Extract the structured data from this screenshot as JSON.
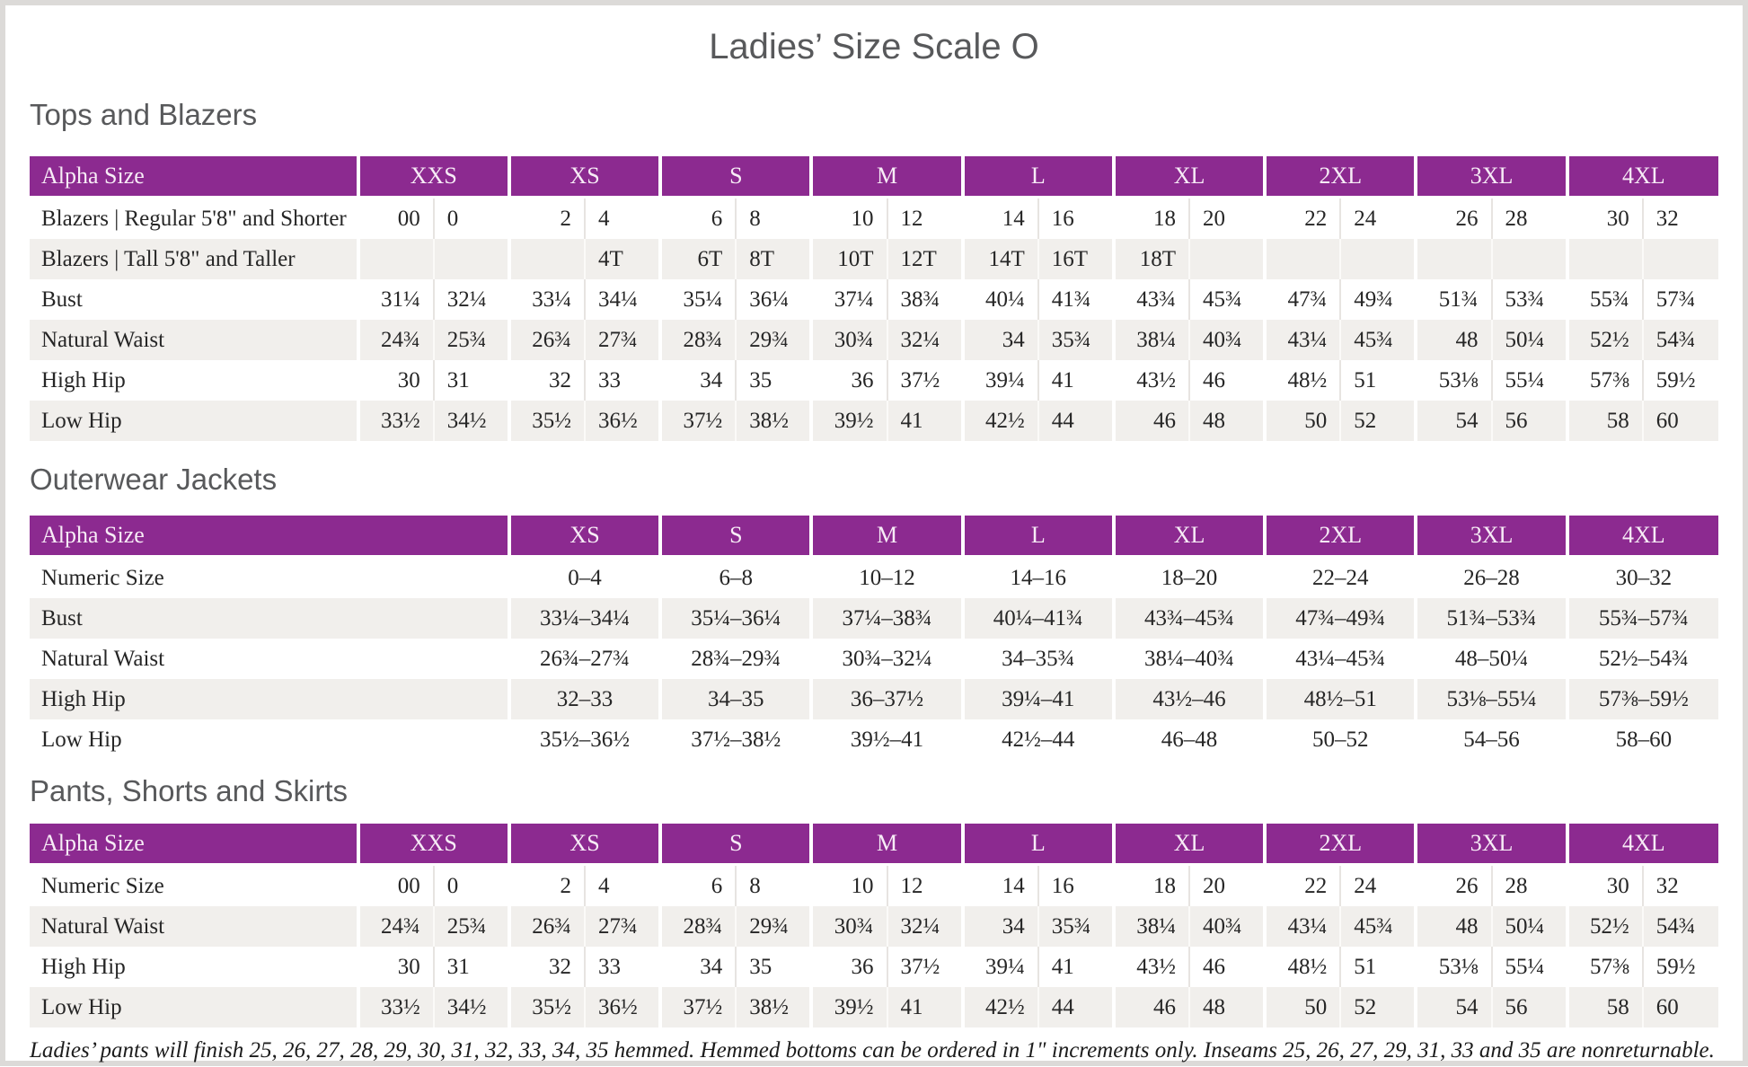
{
  "page_title": "Ladies’ Size Scale O",
  "footnote": "Ladies’ pants will finish 25, 26, 27, 28, 29, 30, 31, 32, 33, 34, 35 hemmed. Hemmed bottoms can be ordered in 1\" increments only. Inseams 25, 26, 27, 29, 31, 33 and 35 are nonreturnable.",
  "colors": {
    "header_bg": "#8c2a90",
    "header_text": "#f7ecf6",
    "row_stripe": "#f1efec",
    "heading_text": "#58595b",
    "body_text": "#262626",
    "frame_border": "#dcdad8"
  },
  "tables": [
    {
      "section_title": "Tops and Blazers",
      "header_label": "Alpha Size",
      "sub_columns": 2,
      "columns": [
        "XXS",
        "XS",
        "S",
        "M",
        "L",
        "XL",
        "2XL",
        "3XL",
        "4XL"
      ],
      "rows": [
        {
          "label": "Blazers | Regular 5'8\" and Shorter",
          "values": [
            [
              "00",
              "0"
            ],
            [
              "2",
              "4"
            ],
            [
              "6",
              "8"
            ],
            [
              "10",
              "12"
            ],
            [
              "14",
              "16"
            ],
            [
              "18",
              "20"
            ],
            [
              "22",
              "24"
            ],
            [
              "26",
              "28"
            ],
            [
              "30",
              "32"
            ]
          ]
        },
        {
          "label": "Blazers | Tall 5'8\" and Taller",
          "values": [
            [
              "",
              ""
            ],
            [
              "",
              "4T"
            ],
            [
              "6T",
              "8T"
            ],
            [
              "10T",
              "12T"
            ],
            [
              "14T",
              "16T"
            ],
            [
              "18T",
              ""
            ],
            [
              "",
              ""
            ],
            [
              "",
              ""
            ],
            [
              "",
              ""
            ]
          ]
        },
        {
          "label": "Bust",
          "values": [
            [
              "31¼",
              "32¼"
            ],
            [
              "33¼",
              "34¼"
            ],
            [
              "35¼",
              "36¼"
            ],
            [
              "37¼",
              "38¾"
            ],
            [
              "40¼",
              "41¾"
            ],
            [
              "43¾",
              "45¾"
            ],
            [
              "47¾",
              "49¾"
            ],
            [
              "51¾",
              "53¾"
            ],
            [
              "55¾",
              "57¾"
            ]
          ]
        },
        {
          "label": "Natural Waist",
          "values": [
            [
              "24¾",
              "25¾"
            ],
            [
              "26¾",
              "27¾"
            ],
            [
              "28¾",
              "29¾"
            ],
            [
              "30¾",
              "32¼"
            ],
            [
              "34",
              "35¾"
            ],
            [
              "38¼",
              "40¾"
            ],
            [
              "43¼",
              "45¾"
            ],
            [
              "48",
              "50¼"
            ],
            [
              "52½",
              "54¾"
            ]
          ]
        },
        {
          "label": "High Hip",
          "values": [
            [
              "30",
              "31"
            ],
            [
              "32",
              "33"
            ],
            [
              "34",
              "35"
            ],
            [
              "36",
              "37½"
            ],
            [
              "39¼",
              "41"
            ],
            [
              "43½",
              "46"
            ],
            [
              "48½",
              "51"
            ],
            [
              "53⅛",
              "55¼"
            ],
            [
              "57⅜",
              "59½"
            ]
          ]
        },
        {
          "label": "Low Hip",
          "values": [
            [
              "33½",
              "34½"
            ],
            [
              "35½",
              "36½"
            ],
            [
              "37½",
              "38½"
            ],
            [
              "39½",
              "41"
            ],
            [
              "42½",
              "44"
            ],
            [
              "46",
              "48"
            ],
            [
              "50",
              "52"
            ],
            [
              "54",
              "56"
            ],
            [
              "58",
              "60"
            ]
          ]
        }
      ]
    },
    {
      "section_title": "Outerwear Jackets",
      "header_label": "Alpha Size",
      "sub_columns": 1,
      "columns": [
        "XS",
        "S",
        "M",
        "L",
        "XL",
        "2XL",
        "3XL",
        "4XL"
      ],
      "rows": [
        {
          "label": "Numeric Size",
          "values": [
            "0–4",
            "6–8",
            "10–12",
            "14–16",
            "18–20",
            "22–24",
            "26–28",
            "30–32"
          ]
        },
        {
          "label": "Bust",
          "values": [
            "33¼–34¼",
            "35¼–36¼",
            "37¼–38¾",
            "40¼–41¾",
            "43¾–45¾",
            "47¾–49¾",
            "51¾–53¾",
            "55¾–57¾"
          ]
        },
        {
          "label": "Natural Waist",
          "values": [
            "26¾–27¾",
            "28¾–29¾",
            "30¾–32¼",
            "34–35¾",
            "38¼–40¾",
            "43¼–45¾",
            "48–50¼",
            "52½–54¾"
          ]
        },
        {
          "label": "High Hip",
          "values": [
            "32–33",
            "34–35",
            "36–37½",
            "39¼–41",
            "43½–46",
            "48½–51",
            "53⅛–55¼",
            "57⅜–59½"
          ]
        },
        {
          "label": "Low Hip",
          "values": [
            "35½–36½",
            "37½–38½",
            "39½–41",
            "42½–44",
            "46–48",
            "50–52",
            "54–56",
            "58–60"
          ]
        }
      ]
    },
    {
      "section_title": "Pants, Shorts and Skirts",
      "header_label": "Alpha Size",
      "sub_columns": 2,
      "columns": [
        "XXS",
        "XS",
        "S",
        "M",
        "L",
        "XL",
        "2XL",
        "3XL",
        "4XL"
      ],
      "rows": [
        {
          "label": "Numeric Size",
          "values": [
            [
              "00",
              "0"
            ],
            [
              "2",
              "4"
            ],
            [
              "6",
              "8"
            ],
            [
              "10",
              "12"
            ],
            [
              "14",
              "16"
            ],
            [
              "18",
              "20"
            ],
            [
              "22",
              "24"
            ],
            [
              "26",
              "28"
            ],
            [
              "30",
              "32"
            ]
          ]
        },
        {
          "label": "Natural Waist",
          "values": [
            [
              "24¾",
              "25¾"
            ],
            [
              "26¾",
              "27¾"
            ],
            [
              "28¾",
              "29¾"
            ],
            [
              "30¾",
              "32¼"
            ],
            [
              "34",
              "35¾"
            ],
            [
              "38¼",
              "40¾"
            ],
            [
              "43¼",
              "45¾"
            ],
            [
              "48",
              "50¼"
            ],
            [
              "52½",
              "54¾"
            ]
          ]
        },
        {
          "label": "High Hip",
          "values": [
            [
              "30",
              "31"
            ],
            [
              "32",
              "33"
            ],
            [
              "34",
              "35"
            ],
            [
              "36",
              "37½"
            ],
            [
              "39¼",
              "41"
            ],
            [
              "43½",
              "46"
            ],
            [
              "48½",
              "51"
            ],
            [
              "53⅛",
              "55¼"
            ],
            [
              "57⅜",
              "59½"
            ]
          ]
        },
        {
          "label": "Low Hip",
          "values": [
            [
              "33½",
              "34½"
            ],
            [
              "35½",
              "36½"
            ],
            [
              "37½",
              "38½"
            ],
            [
              "39½",
              "41"
            ],
            [
              "42½",
              "44"
            ],
            [
              "46",
              "48"
            ],
            [
              "50",
              "52"
            ],
            [
              "54",
              "56"
            ],
            [
              "58",
              "60"
            ]
          ]
        }
      ]
    }
  ]
}
